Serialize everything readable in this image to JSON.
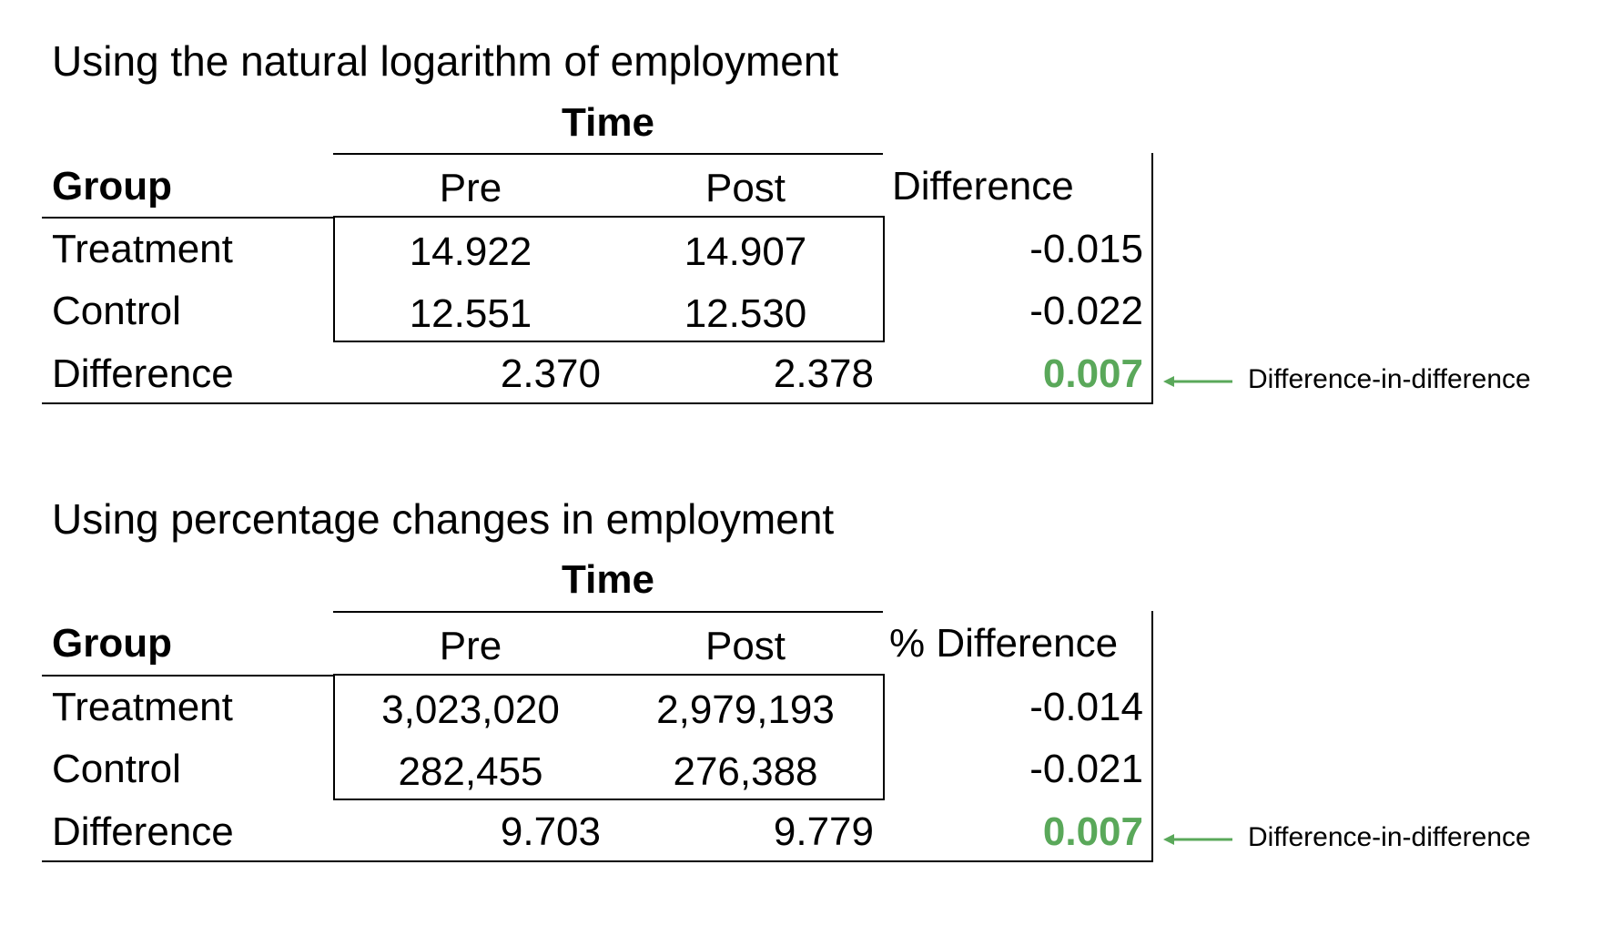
{
  "colors": {
    "highlight": "#5aa85a",
    "text": "#000000"
  },
  "tables": [
    {
      "title": "Using the natural logarithm of employment",
      "time_label": "Time",
      "group_header": "Group",
      "pre_header": "Pre",
      "post_header": "Post",
      "diff_header": "Difference",
      "rows": [
        {
          "label": "Treatment",
          "pre": "14.922",
          "post": "14.907",
          "diff": "-0.015"
        },
        {
          "label": "Control",
          "pre": "12.551",
          "post": "12.530",
          "diff": "-0.022"
        }
      ],
      "difference_row": {
        "label": "Difference",
        "pre": "2.370",
        "post": "2.378",
        "diff": "0.007"
      },
      "annotation": "Difference-in-difference",
      "annotation_icon": "left-arrow-icon"
    },
    {
      "title": "Using percentage changes in employment",
      "time_label": "Time",
      "group_header": "Group",
      "pre_header": "Pre",
      "post_header": "Post",
      "diff_header": "% Difference",
      "rows": [
        {
          "label": "Treatment",
          "pre": "3,023,020",
          "post": "2,979,193",
          "diff": "-0.014"
        },
        {
          "label": "Control",
          "pre": "282,455",
          "post": "276,388",
          "diff": "-0.021"
        }
      ],
      "difference_row": {
        "label": "Difference",
        "pre": "9.703",
        "post": "9.779",
        "diff": "0.007"
      },
      "annotation": "Difference-in-difference",
      "annotation_icon": "left-arrow-icon"
    }
  ]
}
